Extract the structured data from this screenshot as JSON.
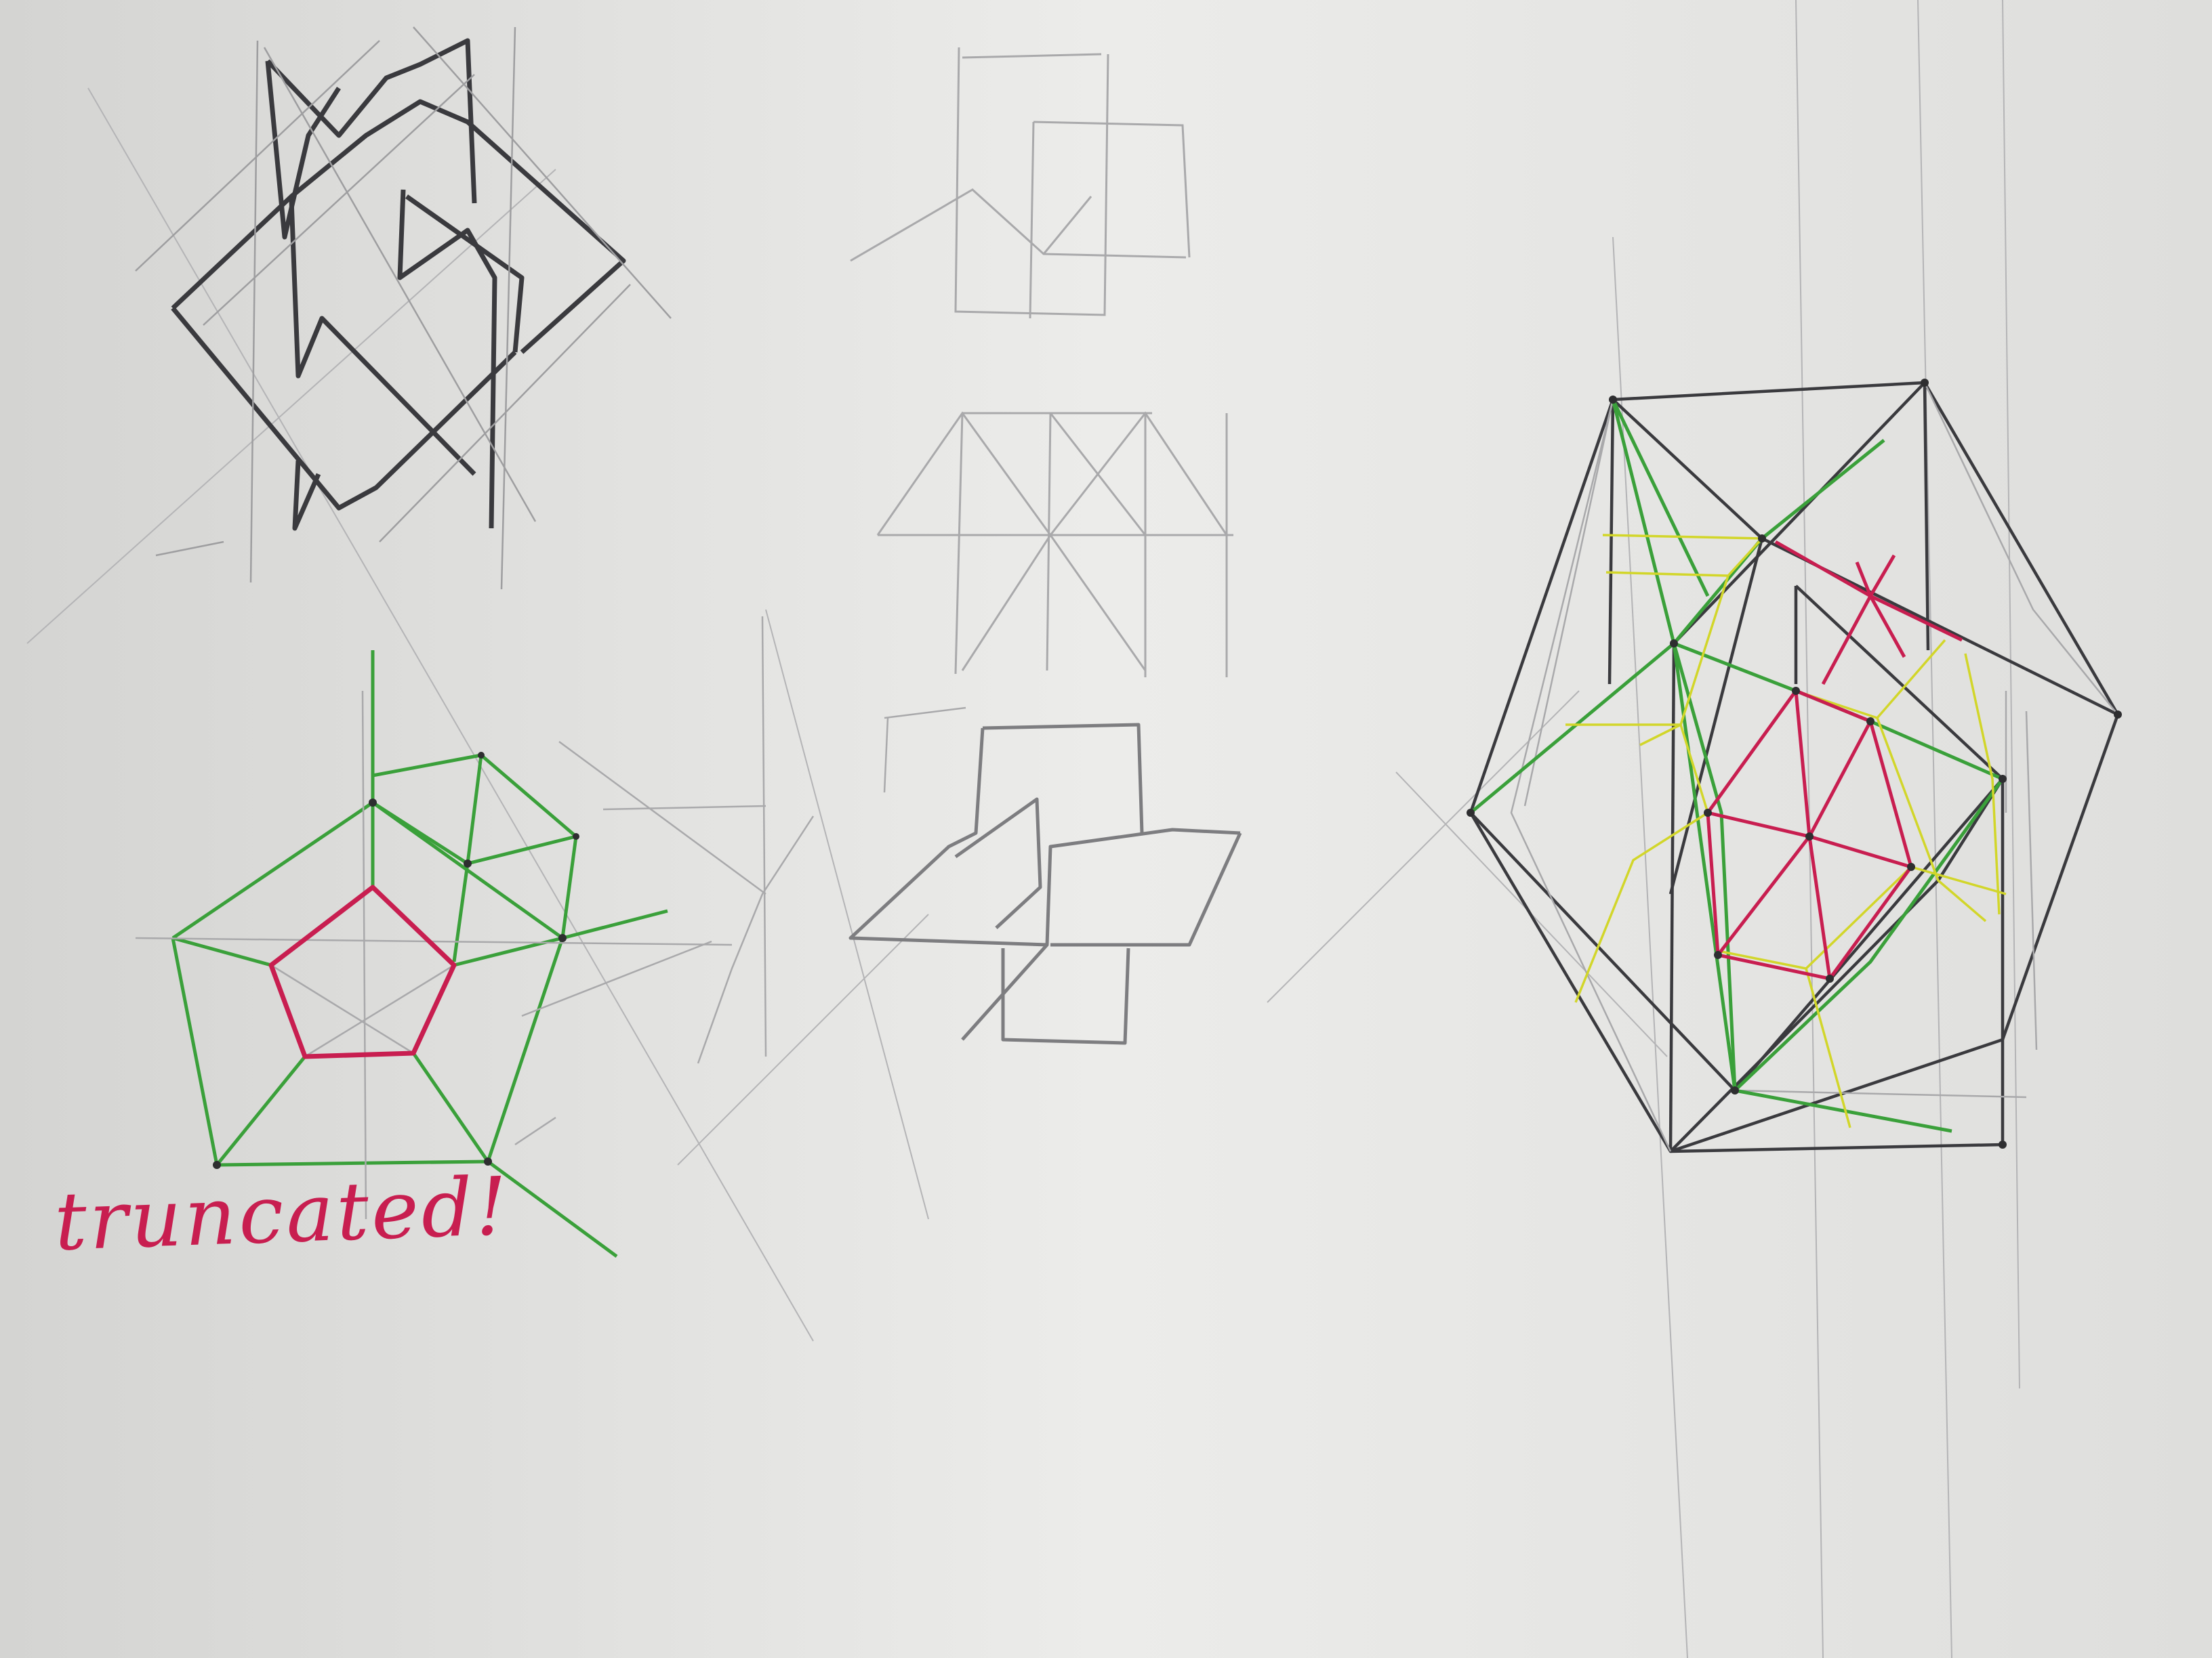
{
  "photo": {
    "paper_color": "#e7e7e5",
    "ink": {
      "pencil_dark": "#3a3a3e",
      "pencil_light": "#a9a9ab",
      "marker_green": "#3aa03a",
      "marker_red": "#c81e50",
      "marker_yellow": "#d2d62a"
    }
  },
  "annotation": {
    "text": "truncated!",
    "color": "#c81e50"
  }
}
